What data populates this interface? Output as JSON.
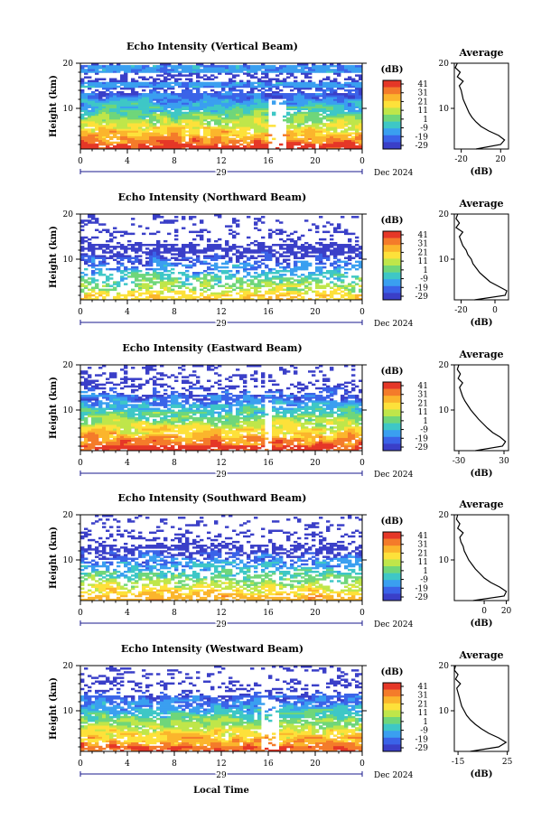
{
  "page": {
    "x_axis_title": "Local Time"
  },
  "colorbar": {
    "unit": "(dB)",
    "ticks": [
      "41",
      "31",
      "21",
      "11",
      "1",
      "-9",
      "-19",
      "-29"
    ],
    "colors": [
      "#e53727",
      "#f47b2a",
      "#fbb52c",
      "#fde13a",
      "#bfe64a",
      "#6fd67a",
      "#3ec7c6",
      "#3a9ff0",
      "#3a63e8",
      "#3a3fc8"
    ]
  },
  "chart_data": [
    {
      "type": "heatmap",
      "title": "Echo Intensity (Vertical Beam)",
      "ylabel": "Height (km)",
      "ylim": [
        1,
        20
      ],
      "yticks": [
        "20",
        "10"
      ],
      "xlim": [
        0,
        24
      ],
      "xticks": [
        "0",
        "4",
        "8",
        "12",
        "16",
        "20",
        "0"
      ],
      "date_label": "29",
      "month_label": "Dec 2024",
      "clim": [
        -29,
        41
      ],
      "profile": {
        "title": "Average",
        "xlabel": "(dB)",
        "xticks": [
          "-20",
          "20"
        ],
        "xlim": [
          -27,
          28
        ],
        "height_km": [
          1,
          2,
          3,
          4,
          5,
          6,
          7,
          8,
          9,
          10,
          11,
          12,
          13,
          14,
          15,
          16,
          17,
          18,
          19,
          20
        ],
        "value_db": [
          -5,
          20,
          24,
          18,
          8,
          0,
          -5,
          -9,
          -12,
          -14,
          -16,
          -18,
          -19,
          -20,
          -22,
          -18,
          -24,
          -21,
          -26,
          -24
        ]
      }
    },
    {
      "type": "heatmap",
      "title": "Echo Intensity (Northward Beam)",
      "ylabel": "Height (km)",
      "ylim": [
        1,
        20
      ],
      "yticks": [
        "20",
        "10"
      ],
      "xlim": [
        0,
        24
      ],
      "xticks": [
        "0",
        "4",
        "8",
        "12",
        "16",
        "20",
        "0"
      ],
      "date_label": "29",
      "month_label": "Dec 2024",
      "clim": [
        -29,
        41
      ],
      "profile": {
        "title": "Average",
        "xlabel": "(dB)",
        "xticks": [
          "-20",
          "0"
        ],
        "xlim": [
          -24,
          8
        ],
        "height_km": [
          1,
          2,
          3,
          4,
          5,
          6,
          7,
          8,
          9,
          10,
          11,
          12,
          13,
          14,
          15,
          16,
          17,
          18,
          19,
          20
        ],
        "value_db": [
          -12,
          6,
          7,
          2,
          -3,
          -6,
          -9,
          -11,
          -13,
          -14,
          -16,
          -17,
          -19,
          -20,
          -21,
          -19,
          -23,
          -21,
          -23,
          -22
        ]
      }
    },
    {
      "type": "heatmap",
      "title": "Echo Intensity (Eastward Beam)",
      "ylabel": "Height (km)",
      "ylim": [
        1,
        20
      ],
      "yticks": [
        "20",
        "10"
      ],
      "xlim": [
        0,
        24
      ],
      "xticks": [
        "0",
        "4",
        "8",
        "12",
        "16",
        "20",
        "0"
      ],
      "date_label": "29",
      "month_label": "Dec 2024",
      "clim": [
        -29,
        41
      ],
      "profile": {
        "title": "Average",
        "xlabel": "(dB)",
        "xticks": [
          "-30",
          "30"
        ],
        "xlim": [
          -36,
          36
        ],
        "height_km": [
          1,
          2,
          3,
          4,
          5,
          6,
          7,
          8,
          9,
          10,
          11,
          12,
          13,
          14,
          15,
          16,
          17,
          18,
          19,
          20
        ],
        "value_db": [
          -8,
          28,
          32,
          25,
          15,
          8,
          2,
          -4,
          -9,
          -14,
          -18,
          -22,
          -25,
          -27,
          -29,
          -25,
          -31,
          -28,
          -32,
          -30
        ]
      }
    },
    {
      "type": "heatmap",
      "title": "Echo Intensity (Southward Beam)",
      "ylabel": "Height (km)",
      "ylim": [
        1,
        20
      ],
      "yticks": [
        "20",
        "10"
      ],
      "xlim": [
        0,
        24
      ],
      "xticks": [
        "0",
        "4",
        "8",
        "12",
        "16",
        "20",
        "0"
      ],
      "date_label": "29",
      "month_label": "Dec 2024",
      "clim": [
        -29,
        41
      ],
      "profile": {
        "title": "Average",
        "xlabel": "(dB)",
        "xticks": [
          "0",
          "20"
        ],
        "xlim": [
          -27,
          22
        ],
        "height_km": [
          1,
          2,
          3,
          4,
          5,
          6,
          7,
          8,
          9,
          10,
          11,
          12,
          13,
          14,
          15,
          16,
          17,
          18,
          19,
          20
        ],
        "value_db": [
          -10,
          18,
          20,
          14,
          6,
          0,
          -4,
          -8,
          -11,
          -14,
          -16,
          -18,
          -19,
          -21,
          -22,
          -19,
          -24,
          -22,
          -25,
          -24
        ]
      }
    },
    {
      "type": "heatmap",
      "title": "Echo Intensity (Westward Beam)",
      "ylabel": "Height (km)",
      "ylim": [
        1,
        20
      ],
      "yticks": [
        "20",
        "10"
      ],
      "xlim": [
        0,
        24
      ],
      "xticks": [
        "0",
        "4",
        "8",
        "12",
        "16",
        "20",
        "0"
      ],
      "date_label": "29",
      "month_label": "Dec 2024",
      "clim": [
        -29,
        41
      ],
      "profile": {
        "title": "Average",
        "xlabel": "(dB)",
        "xticks": [
          "-15",
          "25"
        ],
        "xlim": [
          -18,
          26
        ],
        "height_km": [
          1,
          2,
          3,
          4,
          5,
          6,
          7,
          8,
          9,
          10,
          11,
          12,
          13,
          14,
          15,
          16,
          17,
          18,
          19,
          20
        ],
        "value_db": [
          -5,
          18,
          24,
          18,
          10,
          4,
          -1,
          -5,
          -8,
          -10,
          -12,
          -13,
          -14,
          -15,
          -16,
          -13,
          -17,
          -15,
          -18,
          -17
        ]
      }
    }
  ]
}
